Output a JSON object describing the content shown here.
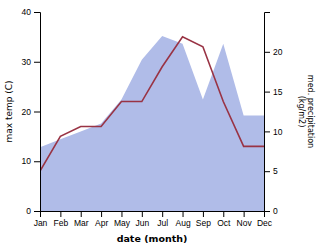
{
  "chart_data": {
    "type": "line",
    "categories": [
      "Jan",
      "Feb",
      "Mar",
      "Apr",
      "May",
      "Jun",
      "Jul",
      "Aug",
      "Sep",
      "Oct",
      "Nov",
      "Dec"
    ],
    "series": [
      {
        "type": "area",
        "axis": "y2",
        "color": "#b0bce8",
        "values": [
          8,
          9,
          10,
          11,
          14,
          19,
          22,
          21,
          14,
          21,
          12,
          12
        ]
      },
      {
        "type": "line",
        "color": "#993344",
        "values": [
          8,
          15,
          17,
          17,
          22,
          22,
          29,
          35,
          33,
          22,
          13,
          13
        ]
      }
    ],
    "xlabel": "date (month)",
    "ylabel": "max temp (C)",
    "y2label": "med. precipitation\n(kg/m2)",
    "ylim": [
      0,
      40
    ],
    "yticks": [
      0,
      10,
      20,
      30,
      40
    ],
    "y2lim": [
      0,
      25
    ],
    "y2ticks": [
      0,
      5,
      10,
      15,
      20
    ],
    "grid": false
  }
}
